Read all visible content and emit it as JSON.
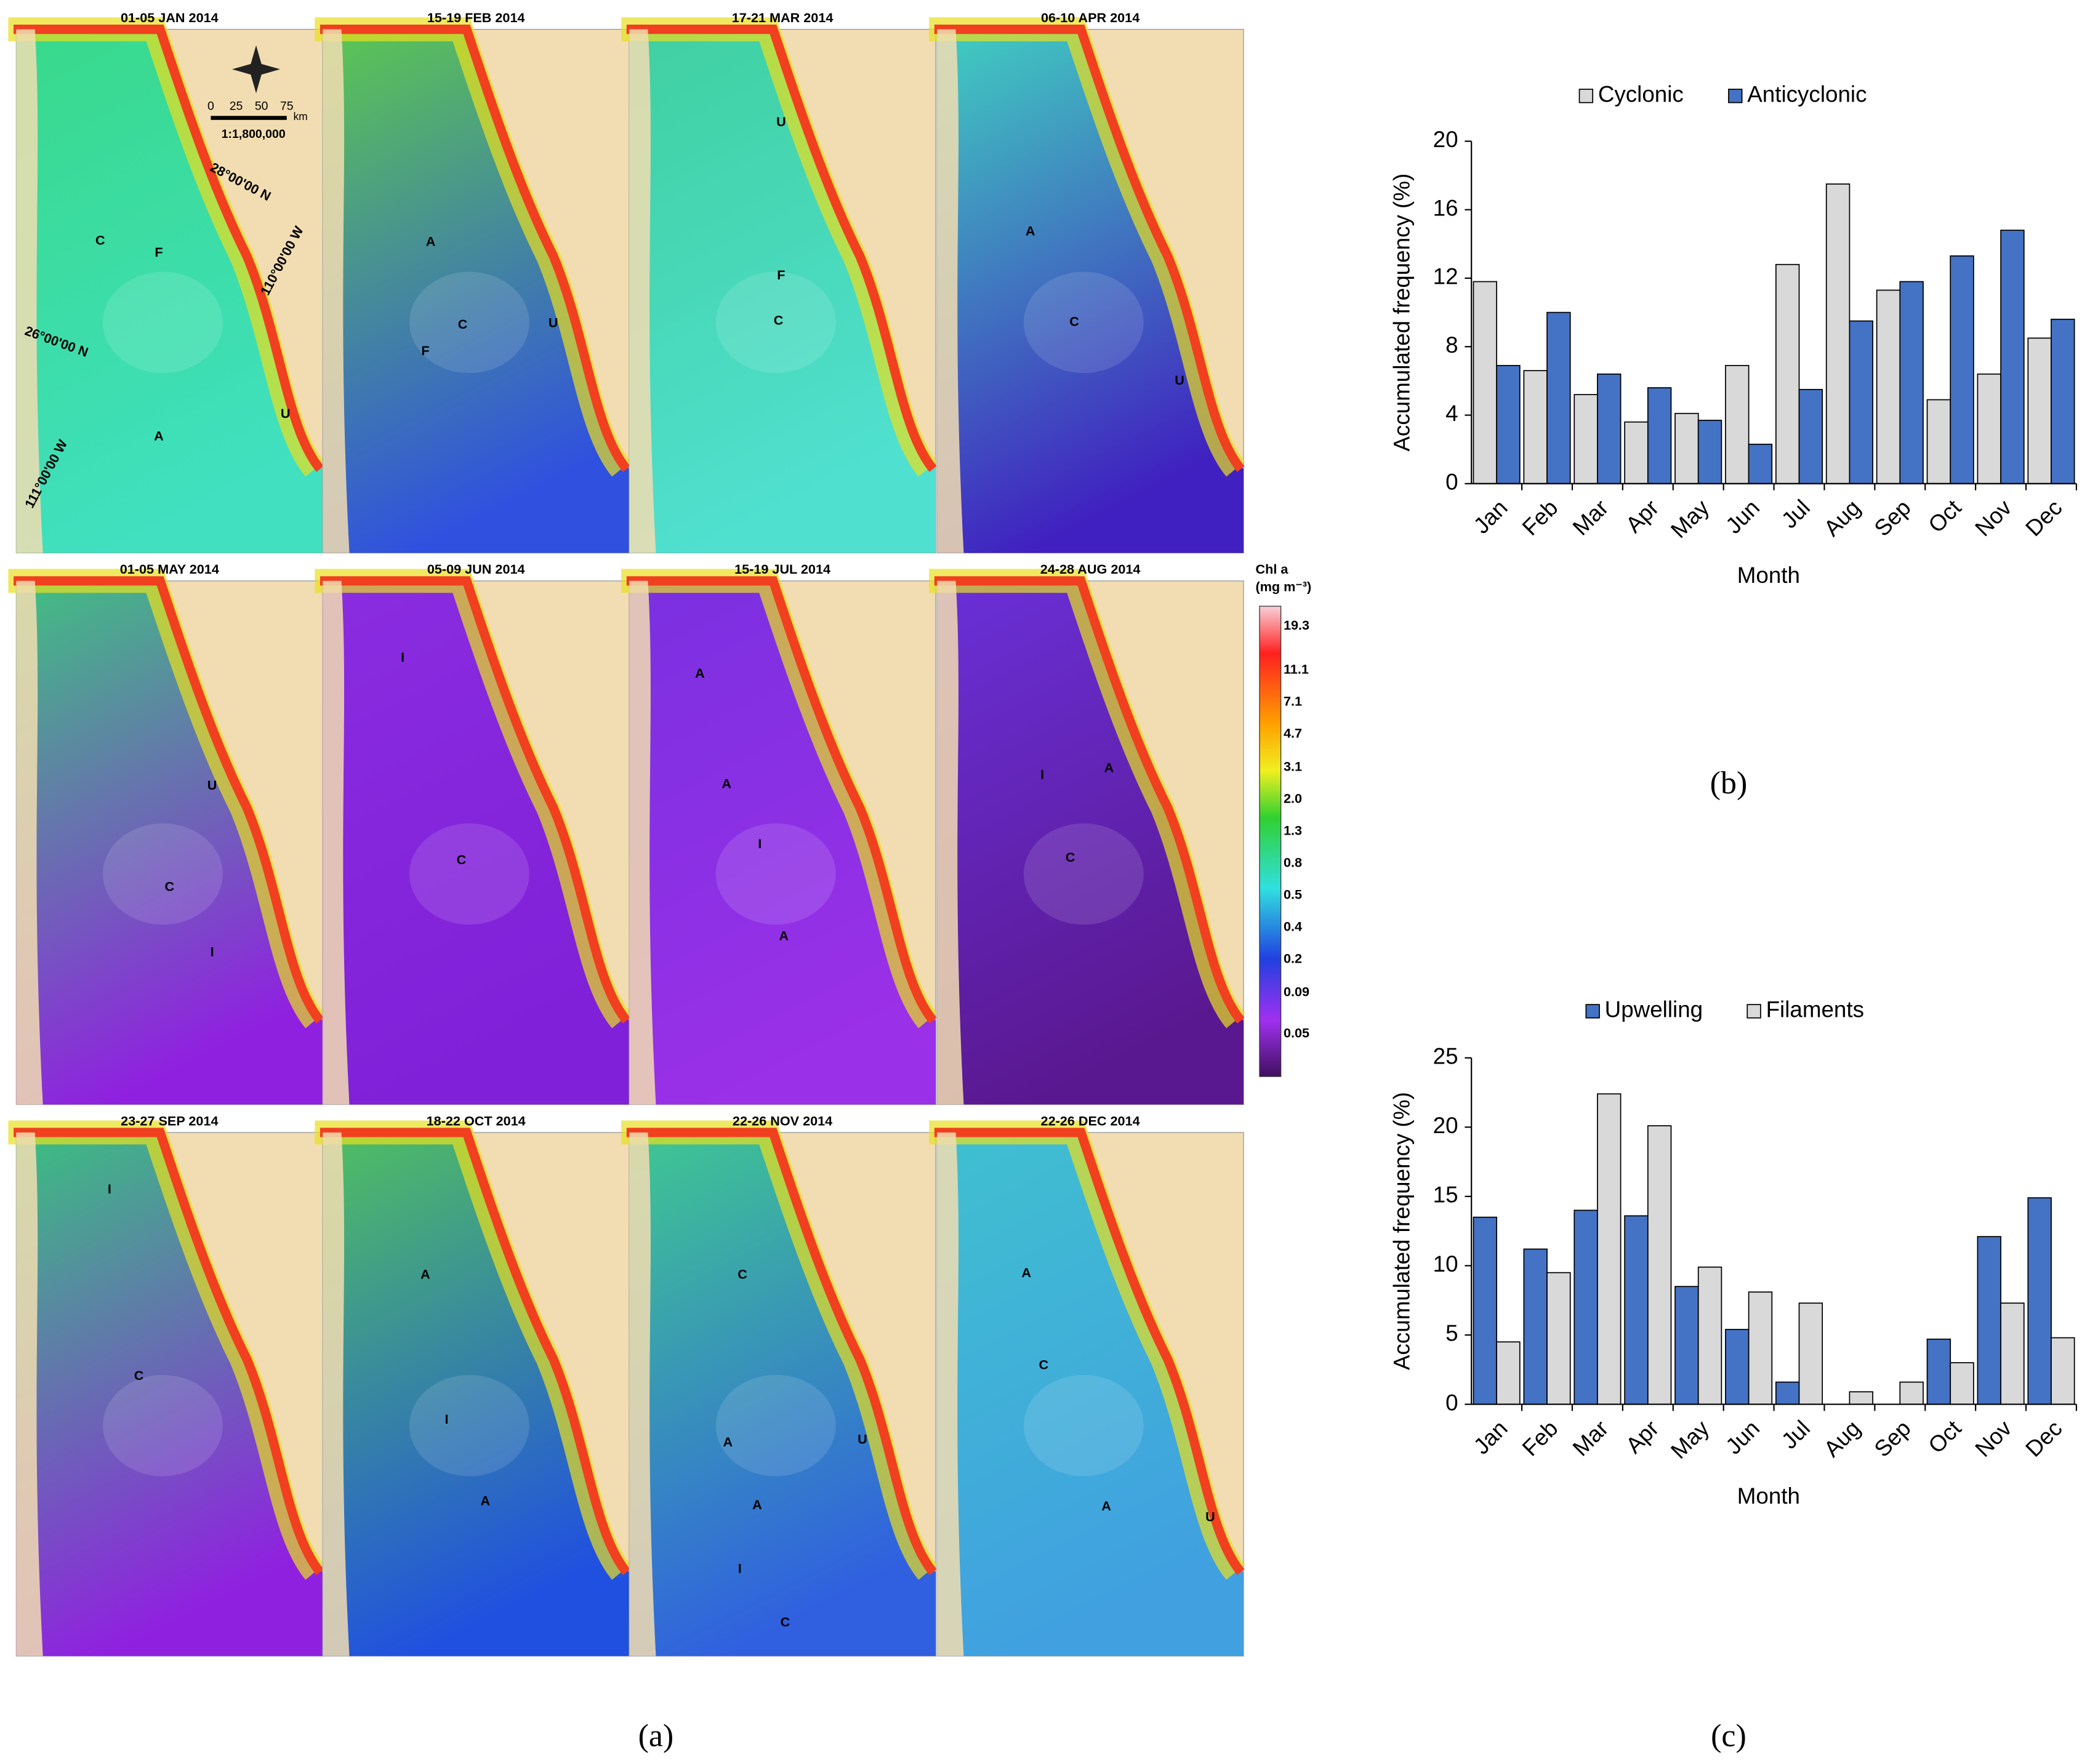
{
  "maps": {
    "panels": [
      {
        "title": "01-05 JAN 2014",
        "labels": [
          "C",
          "F",
          "A",
          "U"
        ]
      },
      {
        "title": "15-19 FEB 2014",
        "labels": [
          "A",
          "C",
          "U",
          "F"
        ]
      },
      {
        "title": "17-21 MAR 2014",
        "labels": [
          "U",
          "F",
          "C"
        ]
      },
      {
        "title": "06-10 APR 2014",
        "labels": [
          "A",
          "C",
          "U"
        ]
      },
      {
        "title": "01-05 MAY 2014",
        "labels": [
          "U",
          "C",
          "I"
        ]
      },
      {
        "title": "05-09 JUN 2014",
        "labels": [
          "I",
          "C"
        ]
      },
      {
        "title": "15-19 JUL 2014",
        "labels": [
          "A",
          "A",
          "I",
          "A"
        ]
      },
      {
        "title": "24-28 AUG 2014",
        "labels": [
          "I",
          "A",
          "C"
        ]
      },
      {
        "title": "23-27 SEP 2014",
        "labels": [
          "I",
          "C"
        ]
      },
      {
        "title": "18-22 OCT 2014",
        "labels": [
          "A",
          "I",
          "A"
        ]
      },
      {
        "title": "22-26 NOV 2014",
        "labels": [
          "C",
          "A",
          "U",
          "A",
          "I",
          "C"
        ]
      },
      {
        "title": "22-26 DEC 2014",
        "labels": [
          "A",
          "C",
          "A",
          "U"
        ]
      }
    ],
    "scale_ticks": [
      "0",
      "25",
      "50",
      "75"
    ],
    "scale_unit": "km",
    "scale_ratio": "1:1,800,000",
    "coords": [
      "28°00'00 N",
      "110°00'00 W",
      "26°00'00 N",
      "111°00'00 W"
    ],
    "colorbar": {
      "title": "Chl a",
      "unit": "(mg m⁻³)",
      "ticks": [
        "19.3",
        "11.1",
        "7.1",
        "4.7",
        "3.1",
        "2.0",
        "1.3",
        "0.8",
        "0.5",
        "0.4",
        "0.2",
        "0.09",
        "0.05"
      ]
    }
  },
  "captions": [
    "(a)",
    "(b)",
    "(c)"
  ],
  "chart_data": [
    {
      "type": "bar",
      "ylabel": "Accumulated frequency (%)",
      "xlabel": "Month",
      "categories": [
        "Jan",
        "Feb",
        "Mar",
        "Apr",
        "May",
        "Jun",
        "Jul",
        "Aug",
        "Sep",
        "Oct",
        "Nov",
        "Dec"
      ],
      "series": [
        {
          "name": "Cyclonic",
          "color": "#d9d9d9",
          "values": [
            11.8,
            6.6,
            5.2,
            3.6,
            4.1,
            6.9,
            12.8,
            17.5,
            11.3,
            4.9,
            6.4,
            8.5
          ]
        },
        {
          "name": "Anticyclonic",
          "color": "#4472c4",
          "values": [
            6.9,
            10.0,
            6.4,
            5.6,
            3.7,
            2.3,
            5.5,
            9.5,
            11.8,
            13.3,
            14.8,
            9.6
          ]
        }
      ],
      "ylim": [
        0,
        20
      ],
      "yticks": [
        0,
        4,
        8,
        12,
        16,
        20
      ],
      "grid": false,
      "legend": "top"
    },
    {
      "type": "bar",
      "ylabel": "Accumulated frequency (%)",
      "xlabel": "Month",
      "categories": [
        "Jan",
        "Feb",
        "Mar",
        "Apr",
        "May",
        "Jun",
        "Jul",
        "Aug",
        "Sep",
        "Oct",
        "Nov",
        "Dec"
      ],
      "series": [
        {
          "name": "Upwelling",
          "color": "#4472c4",
          "values": [
            13.5,
            11.2,
            14.0,
            13.6,
            8.5,
            5.4,
            1.6,
            0,
            0,
            4.7,
            12.1,
            14.9
          ]
        },
        {
          "name": "Filaments",
          "color": "#d9d9d9",
          "values": [
            4.5,
            9.5,
            22.4,
            20.1,
            9.9,
            8.1,
            7.3,
            0.9,
            1.6,
            3.0,
            7.3,
            4.8
          ]
        }
      ],
      "ylim": [
        0,
        25
      ],
      "yticks": [
        0,
        5,
        10,
        15,
        20,
        25
      ],
      "grid": false,
      "legend": "top"
    }
  ]
}
